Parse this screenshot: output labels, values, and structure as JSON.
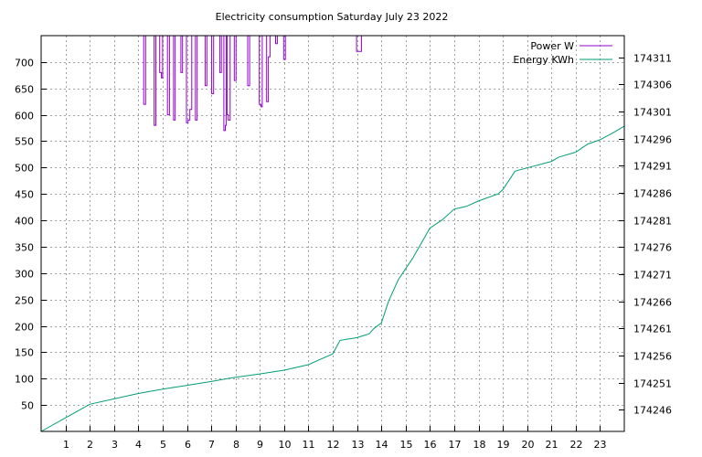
{
  "chart_data": {
    "type": "line",
    "title": "Electricity consumption Saturday July 23 2022",
    "x": {
      "range": [
        0,
        24
      ],
      "ticks": [
        1,
        2,
        3,
        4,
        5,
        6,
        7,
        8,
        9,
        10,
        11,
        12,
        13,
        14,
        15,
        16,
        17,
        18,
        19,
        20,
        21,
        22,
        23
      ]
    },
    "y_left": {
      "range": [
        0,
        750
      ],
      "ticks": [
        50,
        100,
        150,
        200,
        250,
        300,
        350,
        400,
        450,
        500,
        550,
        600,
        650,
        700
      ]
    },
    "y_right": {
      "range": [
        174242,
        174315
      ],
      "ticks": [
        174246,
        174251,
        174256,
        174261,
        174266,
        174271,
        174276,
        174281,
        174286,
        174291,
        174296,
        174301,
        174306,
        174311
      ]
    },
    "grid": true,
    "legend_position": "top-right",
    "series": [
      {
        "name": "Power W",
        "color": "#9400d3",
        "axis": "left",
        "step": true,
        "points": [
          [
            4.18,
            750
          ],
          [
            4.22,
            620
          ],
          [
            4.3,
            750
          ],
          [
            4.6,
            750
          ],
          [
            4.65,
            580
          ],
          [
            4.72,
            750
          ],
          [
            4.85,
            750
          ],
          [
            4.88,
            680
          ],
          [
            4.95,
            670
          ],
          [
            5.0,
            750
          ],
          [
            5.15,
            750
          ],
          [
            5.2,
            600
          ],
          [
            5.28,
            750
          ],
          [
            5.4,
            750
          ],
          [
            5.45,
            590
          ],
          [
            5.52,
            750
          ],
          [
            5.7,
            750
          ],
          [
            5.75,
            680
          ],
          [
            5.82,
            750
          ],
          [
            5.95,
            750
          ],
          [
            5.98,
            585
          ],
          [
            6.05,
            590
          ],
          [
            6.12,
            610
          ],
          [
            6.2,
            750
          ],
          [
            6.3,
            750
          ],
          [
            6.35,
            590
          ],
          [
            6.42,
            750
          ],
          [
            6.7,
            750
          ],
          [
            6.75,
            655
          ],
          [
            6.82,
            750
          ],
          [
            6.98,
            750
          ],
          [
            7.02,
            640
          ],
          [
            7.1,
            750
          ],
          [
            7.3,
            750
          ],
          [
            7.35,
            680
          ],
          [
            7.42,
            750
          ],
          [
            7.48,
            750
          ],
          [
            7.52,
            570
          ],
          [
            7.58,
            580
          ],
          [
            7.62,
            750
          ],
          [
            7.65,
            600
          ],
          [
            7.7,
            590
          ],
          [
            7.78,
            750
          ],
          [
            7.9,
            750
          ],
          [
            7.95,
            665
          ],
          [
            8.02,
            750
          ],
          [
            8.45,
            750
          ],
          [
            8.5,
            655
          ],
          [
            8.58,
            750
          ],
          [
            8.95,
            750
          ],
          [
            8.98,
            620
          ],
          [
            9.05,
            615
          ],
          [
            9.1,
            750
          ],
          [
            9.25,
            750
          ],
          [
            9.28,
            625
          ],
          [
            9.35,
            710
          ],
          [
            9.42,
            750
          ],
          [
            9.6,
            750
          ],
          [
            9.65,
            735
          ],
          [
            9.72,
            750
          ],
          [
            9.95,
            750
          ],
          [
            9.98,
            705
          ],
          [
            10.05,
            750
          ],
          [
            10.1,
            750
          ],
          [
            12.95,
            750
          ],
          [
            12.98,
            720
          ],
          [
            13.15,
            720
          ],
          [
            13.18,
            750
          ]
        ]
      },
      {
        "name": "Energy KWh",
        "color": "#009e73",
        "axis": "right",
        "points": [
          [
            0,
            174242
          ],
          [
            1,
            174244.5
          ],
          [
            2,
            174247
          ],
          [
            3,
            174248
          ],
          [
            4,
            174249
          ],
          [
            5,
            174249.8
          ],
          [
            6,
            174250.5
          ],
          [
            7,
            174251.2
          ],
          [
            8,
            174252
          ],
          [
            9,
            174252.6
          ],
          [
            10,
            174253.3
          ],
          [
            11,
            174254.3
          ],
          [
            11.5,
            174255.3
          ],
          [
            12,
            174256.3
          ],
          [
            12.3,
            174258.8
          ],
          [
            13,
            174259.3
          ],
          [
            13.5,
            174260
          ],
          [
            13.7,
            174261
          ],
          [
            14,
            174262
          ],
          [
            14.3,
            174266
          ],
          [
            14.7,
            174270
          ],
          [
            15.3,
            174274
          ],
          [
            16,
            174279.5
          ],
          [
            16.5,
            174281
          ],
          [
            17,
            174283
          ],
          [
            17.5,
            174283.5
          ],
          [
            18,
            174284.5
          ],
          [
            18.8,
            174285.8
          ],
          [
            19,
            174286.6
          ],
          [
            19.5,
            174290
          ],
          [
            20,
            174290.6
          ],
          [
            21,
            174291.8
          ],
          [
            21.3,
            174292.6
          ],
          [
            22,
            174293.5
          ],
          [
            22.5,
            174295
          ],
          [
            23,
            174295.8
          ],
          [
            23.5,
            174297
          ],
          [
            24,
            174298.3
          ]
        ]
      }
    ]
  }
}
